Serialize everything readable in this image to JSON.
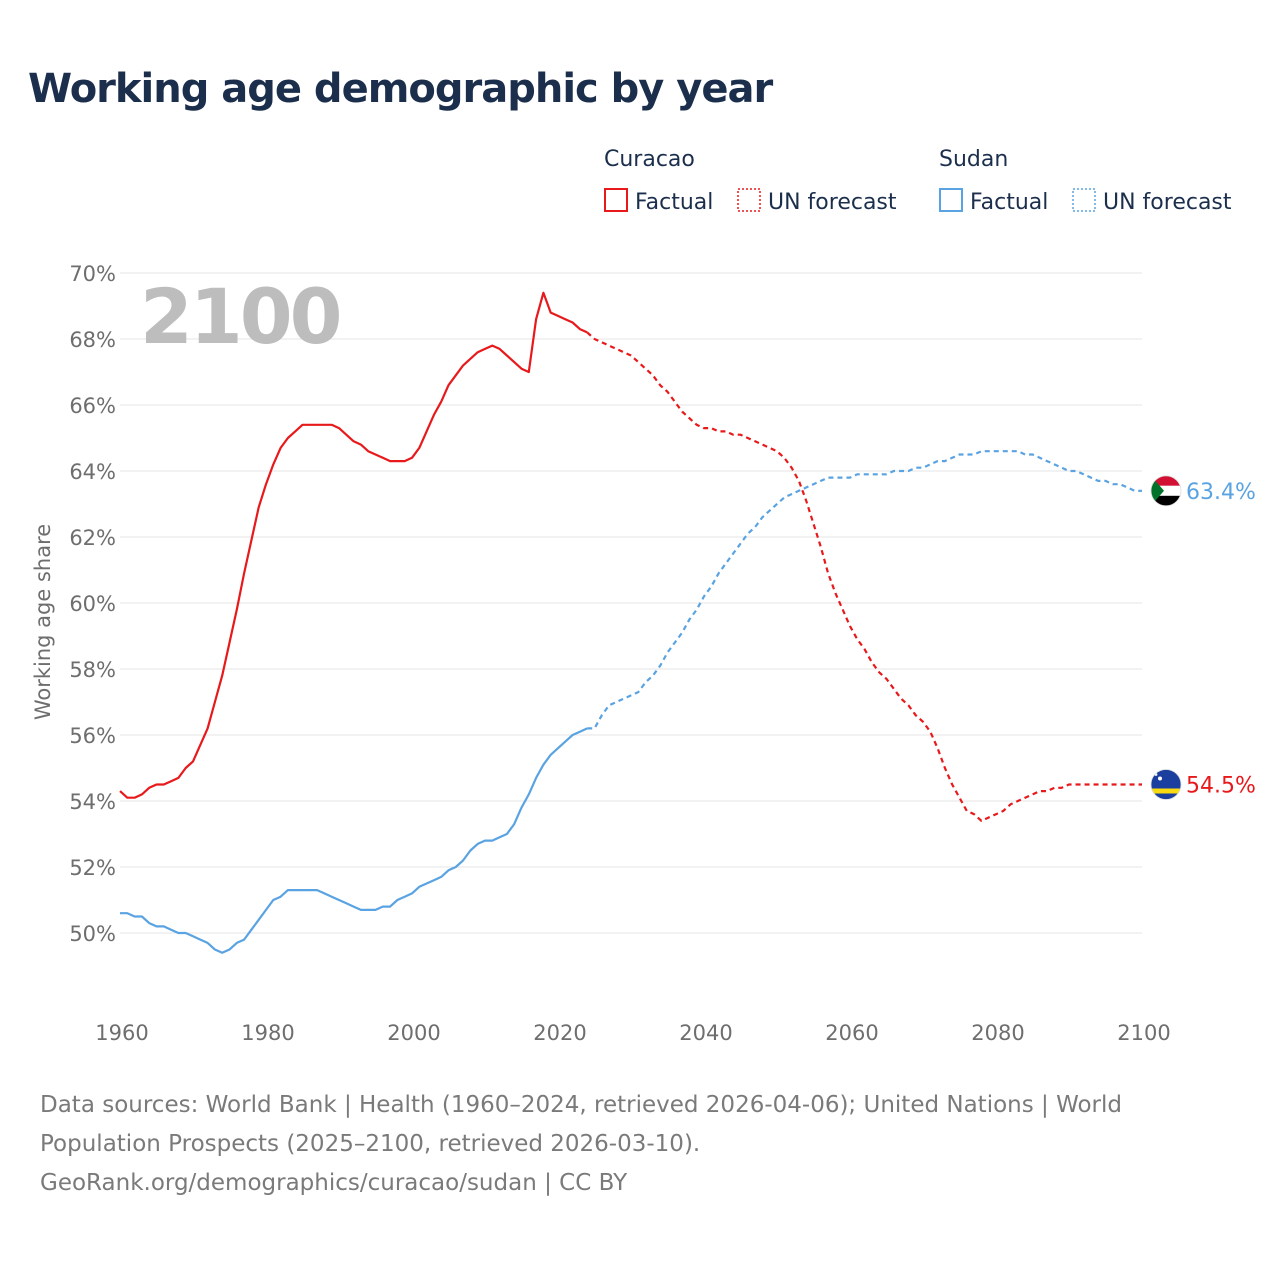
{
  "title": "Working age demographic by year",
  "year_label": "2100",
  "legend": {
    "groups": [
      {
        "country": "Curacao",
        "color": "#e8191b",
        "factual_label": "Factual",
        "forecast_label": "UN forecast"
      },
      {
        "country": "Sudan",
        "color": "#5aa3e2",
        "factual_label": "Factual",
        "forecast_label": "UN forecast"
      }
    ]
  },
  "footer": {
    "line1": "Data sources: World Bank | Health (1960–2024, retrieved 2026-04-06); United Nations | World",
    "line2": "Population Prospects (2025–2100, retrieved 2026-03-10).",
    "line3": "GeoRank.org/demographics/curacao/sudan | CC BY"
  },
  "chart_data": {
    "type": "line",
    "title": "Working age demographic by year",
    "xlabel": "",
    "ylabel": "Working age share",
    "xlim": [
      1960,
      2100
    ],
    "ylim": [
      48,
      70
    ],
    "x_ticks": [
      1960,
      1980,
      2000,
      2020,
      2040,
      2060,
      2080,
      2100
    ],
    "y_ticks": [
      50,
      52,
      54,
      56,
      58,
      60,
      62,
      64,
      66,
      68,
      70
    ],
    "y_tick_suffix": "%",
    "forecast_start": 2024,
    "series": [
      {
        "name": "Curacao",
        "color": "#e8191b",
        "end_label": "54.5%",
        "flag": "curacao",
        "points": [
          [
            1960,
            54.3
          ],
          [
            1961,
            54.1
          ],
          [
            1962,
            54.1
          ],
          [
            1963,
            54.2
          ],
          [
            1964,
            54.4
          ],
          [
            1965,
            54.5
          ],
          [
            1966,
            54.5
          ],
          [
            1967,
            54.6
          ],
          [
            1968,
            54.7
          ],
          [
            1969,
            55.0
          ],
          [
            1970,
            55.2
          ],
          [
            1971,
            55.7
          ],
          [
            1972,
            56.2
          ],
          [
            1973,
            57.0
          ],
          [
            1974,
            57.8
          ],
          [
            1975,
            58.8
          ],
          [
            1976,
            59.8
          ],
          [
            1977,
            60.9
          ],
          [
            1978,
            61.9
          ],
          [
            1979,
            62.9
          ],
          [
            1980,
            63.6
          ],
          [
            1981,
            64.2
          ],
          [
            1982,
            64.7
          ],
          [
            1983,
            65.0
          ],
          [
            1984,
            65.2
          ],
          [
            1985,
            65.4
          ],
          [
            1986,
            65.4
          ],
          [
            1987,
            65.4
          ],
          [
            1988,
            65.4
          ],
          [
            1989,
            65.4
          ],
          [
            1990,
            65.3
          ],
          [
            1991,
            65.1
          ],
          [
            1992,
            64.9
          ],
          [
            1993,
            64.8
          ],
          [
            1994,
            64.6
          ],
          [
            1995,
            64.5
          ],
          [
            1996,
            64.4
          ],
          [
            1997,
            64.3
          ],
          [
            1998,
            64.3
          ],
          [
            1999,
            64.3
          ],
          [
            2000,
            64.4
          ],
          [
            2001,
            64.7
          ],
          [
            2002,
            65.2
          ],
          [
            2003,
            65.7
          ],
          [
            2004,
            66.1
          ],
          [
            2005,
            66.6
          ],
          [
            2006,
            66.9
          ],
          [
            2007,
            67.2
          ],
          [
            2008,
            67.4
          ],
          [
            2009,
            67.6
          ],
          [
            2010,
            67.7
          ],
          [
            2011,
            67.8
          ],
          [
            2012,
            67.7
          ],
          [
            2013,
            67.5
          ],
          [
            2014,
            67.3
          ],
          [
            2015,
            67.1
          ],
          [
            2016,
            67.0
          ],
          [
            2017,
            68.6
          ],
          [
            2018,
            69.4
          ],
          [
            2019,
            68.8
          ],
          [
            2020,
            68.7
          ],
          [
            2021,
            68.6
          ],
          [
            2022,
            68.5
          ],
          [
            2023,
            68.3
          ],
          [
            2024,
            68.2
          ],
          [
            2025,
            68.0
          ],
          [
            2026,
            67.9
          ],
          [
            2027,
            67.8
          ],
          [
            2028,
            67.7
          ],
          [
            2029,
            67.6
          ],
          [
            2030,
            67.5
          ],
          [
            2031,
            67.3
          ],
          [
            2032,
            67.1
          ],
          [
            2033,
            66.9
          ],
          [
            2034,
            66.6
          ],
          [
            2035,
            66.4
          ],
          [
            2036,
            66.1
          ],
          [
            2037,
            65.8
          ],
          [
            2038,
            65.6
          ],
          [
            2039,
            65.4
          ],
          [
            2040,
            65.3
          ],
          [
            2041,
            65.3
          ],
          [
            2042,
            65.2
          ],
          [
            2043,
            65.2
          ],
          [
            2044,
            65.1
          ],
          [
            2045,
            65.1
          ],
          [
            2046,
            65.0
          ],
          [
            2047,
            64.9
          ],
          [
            2048,
            64.8
          ],
          [
            2049,
            64.7
          ],
          [
            2050,
            64.6
          ],
          [
            2051,
            64.4
          ],
          [
            2052,
            64.1
          ],
          [
            2053,
            63.7
          ],
          [
            2054,
            63.1
          ],
          [
            2055,
            62.4
          ],
          [
            2056,
            61.7
          ],
          [
            2057,
            60.9
          ],
          [
            2058,
            60.3
          ],
          [
            2059,
            59.8
          ],
          [
            2060,
            59.3
          ],
          [
            2061,
            58.9
          ],
          [
            2062,
            58.6
          ],
          [
            2063,
            58.2
          ],
          [
            2064,
            57.9
          ],
          [
            2065,
            57.7
          ],
          [
            2066,
            57.4
          ],
          [
            2067,
            57.1
          ],
          [
            2068,
            56.9
          ],
          [
            2069,
            56.6
          ],
          [
            2070,
            56.4
          ],
          [
            2071,
            56.1
          ],
          [
            2072,
            55.6
          ],
          [
            2073,
            55.0
          ],
          [
            2074,
            54.5
          ],
          [
            2075,
            54.1
          ],
          [
            2076,
            53.7
          ],
          [
            2077,
            53.6
          ],
          [
            2078,
            53.4
          ],
          [
            2079,
            53.5
          ],
          [
            2080,
            53.6
          ],
          [
            2081,
            53.7
          ],
          [
            2082,
            53.9
          ],
          [
            2083,
            54.0
          ],
          [
            2084,
            54.1
          ],
          [
            2085,
            54.2
          ],
          [
            2086,
            54.3
          ],
          [
            2087,
            54.3
          ],
          [
            2088,
            54.4
          ],
          [
            2089,
            54.4
          ],
          [
            2090,
            54.5
          ],
          [
            2091,
            54.5
          ],
          [
            2092,
            54.5
          ],
          [
            2093,
            54.5
          ],
          [
            2094,
            54.5
          ],
          [
            2095,
            54.5
          ],
          [
            2096,
            54.5
          ],
          [
            2097,
            54.5
          ],
          [
            2098,
            54.5
          ],
          [
            2099,
            54.5
          ],
          [
            2100,
            54.5
          ]
        ]
      },
      {
        "name": "Sudan",
        "color": "#5aa3e2",
        "end_label": "63.4%",
        "flag": "sudan",
        "points": [
          [
            1960,
            50.6
          ],
          [
            1961,
            50.6
          ],
          [
            1962,
            50.5
          ],
          [
            1963,
            50.5
          ],
          [
            1964,
            50.3
          ],
          [
            1965,
            50.2
          ],
          [
            1966,
            50.2
          ],
          [
            1967,
            50.1
          ],
          [
            1968,
            50.0
          ],
          [
            1969,
            50.0
          ],
          [
            1970,
            49.9
          ],
          [
            1971,
            49.8
          ],
          [
            1972,
            49.7
          ],
          [
            1973,
            49.5
          ],
          [
            1974,
            49.4
          ],
          [
            1975,
            49.5
          ],
          [
            1976,
            49.7
          ],
          [
            1977,
            49.8
          ],
          [
            1978,
            50.1
          ],
          [
            1979,
            50.4
          ],
          [
            1980,
            50.7
          ],
          [
            1981,
            51.0
          ],
          [
            1982,
            51.1
          ],
          [
            1983,
            51.3
          ],
          [
            1984,
            51.3
          ],
          [
            1985,
            51.3
          ],
          [
            1986,
            51.3
          ],
          [
            1987,
            51.3
          ],
          [
            1988,
            51.2
          ],
          [
            1989,
            51.1
          ],
          [
            1990,
            51.0
          ],
          [
            1991,
            50.9
          ],
          [
            1992,
            50.8
          ],
          [
            1993,
            50.7
          ],
          [
            1994,
            50.7
          ],
          [
            1995,
            50.7
          ],
          [
            1996,
            50.8
          ],
          [
            1997,
            50.8
          ],
          [
            1998,
            51.0
          ],
          [
            1999,
            51.1
          ],
          [
            2000,
            51.2
          ],
          [
            2001,
            51.4
          ],
          [
            2002,
            51.5
          ],
          [
            2003,
            51.6
          ],
          [
            2004,
            51.7
          ],
          [
            2005,
            51.9
          ],
          [
            2006,
            52.0
          ],
          [
            2007,
            52.2
          ],
          [
            2008,
            52.5
          ],
          [
            2009,
            52.7
          ],
          [
            2010,
            52.8
          ],
          [
            2011,
            52.8
          ],
          [
            2012,
            52.9
          ],
          [
            2013,
            53.0
          ],
          [
            2014,
            53.3
          ],
          [
            2015,
            53.8
          ],
          [
            2016,
            54.2
          ],
          [
            2017,
            54.7
          ],
          [
            2018,
            55.1
          ],
          [
            2019,
            55.4
          ],
          [
            2020,
            55.6
          ],
          [
            2021,
            55.8
          ],
          [
            2022,
            56.0
          ],
          [
            2023,
            56.1
          ],
          [
            2024,
            56.2
          ],
          [
            2025,
            56.2
          ],
          [
            2026,
            56.6
          ],
          [
            2027,
            56.9
          ],
          [
            2028,
            57.0
          ],
          [
            2029,
            57.1
          ],
          [
            2030,
            57.2
          ],
          [
            2031,
            57.3
          ],
          [
            2032,
            57.6
          ],
          [
            2033,
            57.8
          ],
          [
            2034,
            58.1
          ],
          [
            2035,
            58.5
          ],
          [
            2036,
            58.8
          ],
          [
            2037,
            59.1
          ],
          [
            2038,
            59.5
          ],
          [
            2039,
            59.8
          ],
          [
            2040,
            60.2
          ],
          [
            2041,
            60.5
          ],
          [
            2042,
            60.9
          ],
          [
            2043,
            61.2
          ],
          [
            2044,
            61.5
          ],
          [
            2045,
            61.8
          ],
          [
            2046,
            62.1
          ],
          [
            2047,
            62.3
          ],
          [
            2048,
            62.6
          ],
          [
            2049,
            62.8
          ],
          [
            2050,
            63.0
          ],
          [
            2051,
            63.2
          ],
          [
            2052,
            63.3
          ],
          [
            2053,
            63.4
          ],
          [
            2054,
            63.5
          ],
          [
            2055,
            63.6
          ],
          [
            2056,
            63.7
          ],
          [
            2057,
            63.8
          ],
          [
            2058,
            63.8
          ],
          [
            2059,
            63.8
          ],
          [
            2060,
            63.8
          ],
          [
            2061,
            63.9
          ],
          [
            2062,
            63.9
          ],
          [
            2063,
            63.9
          ],
          [
            2064,
            63.9
          ],
          [
            2065,
            63.9
          ],
          [
            2066,
            64.0
          ],
          [
            2067,
            64.0
          ],
          [
            2068,
            64.0
          ],
          [
            2069,
            64.1
          ],
          [
            2070,
            64.1
          ],
          [
            2071,
            64.2
          ],
          [
            2072,
            64.3
          ],
          [
            2073,
            64.3
          ],
          [
            2074,
            64.4
          ],
          [
            2075,
            64.5
          ],
          [
            2076,
            64.5
          ],
          [
            2077,
            64.5
          ],
          [
            2078,
            64.6
          ],
          [
            2079,
            64.6
          ],
          [
            2080,
            64.6
          ],
          [
            2081,
            64.6
          ],
          [
            2082,
            64.6
          ],
          [
            2083,
            64.6
          ],
          [
            2084,
            64.5
          ],
          [
            2085,
            64.5
          ],
          [
            2086,
            64.4
          ],
          [
            2087,
            64.3
          ],
          [
            2088,
            64.2
          ],
          [
            2089,
            64.1
          ],
          [
            2090,
            64.0
          ],
          [
            2091,
            64.0
          ],
          [
            2092,
            63.9
          ],
          [
            2093,
            63.8
          ],
          [
            2094,
            63.7
          ],
          [
            2095,
            63.7
          ],
          [
            2096,
            63.6
          ],
          [
            2097,
            63.6
          ],
          [
            2098,
            63.5
          ],
          [
            2099,
            63.4
          ],
          [
            2100,
            63.4
          ]
        ]
      }
    ]
  }
}
